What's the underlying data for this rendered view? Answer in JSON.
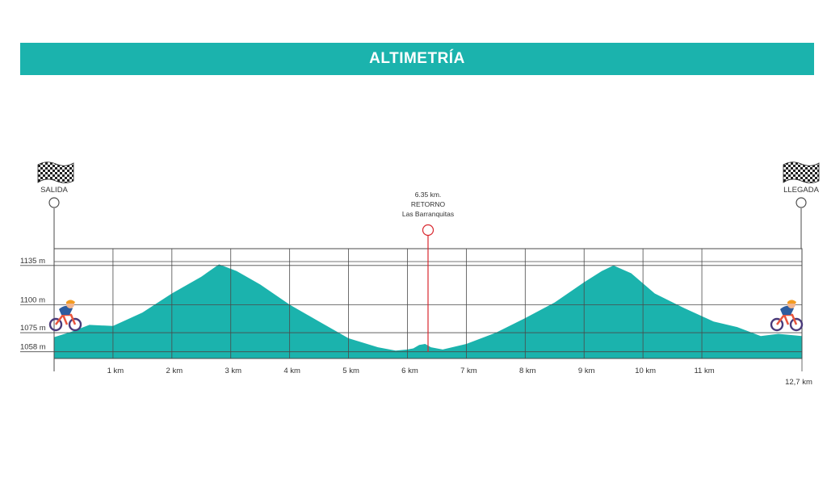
{
  "colors": {
    "accent": "#1bb3ad",
    "grid": "#4a4a4a",
    "retorno": "#d9272e"
  },
  "header": {
    "title": "ALTIMETRÍA"
  },
  "start": {
    "label": "SALIDA",
    "icon": "checkered-flag-icon",
    "rider_icon": "cyclist-icon"
  },
  "finish": {
    "label": "LLEGADA",
    "icon": "checkered-flag-icon",
    "rider_icon": "cyclist-icon"
  },
  "turnaround": {
    "distance": "6.35 km.",
    "title": "RETORNO",
    "place": "Las Barranquitas",
    "km": 6.35
  },
  "chart_data": {
    "type": "area",
    "xlabel": "",
    "ylabel": "",
    "xlim": [
      0,
      12.7
    ],
    "ylim": [
      1052,
      1150
    ],
    "y_ticks": [
      {
        "value": 1135,
        "label": "1135 m"
      },
      {
        "value": 1100,
        "label": "1100 m"
      },
      {
        "value": 1075,
        "label": "1075 m"
      },
      {
        "value": 1058,
        "label": "1058 m"
      }
    ],
    "x_ticks": [
      {
        "value": 1,
        "label": "1 km"
      },
      {
        "value": 2,
        "label": "2 km"
      },
      {
        "value": 3,
        "label": "3 km"
      },
      {
        "value": 4,
        "label": "4 km"
      },
      {
        "value": 5,
        "label": "5 km"
      },
      {
        "value": 6,
        "label": "6 km"
      },
      {
        "value": 7,
        "label": "7 km"
      },
      {
        "value": 8,
        "label": "8 km"
      },
      {
        "value": 9,
        "label": "9 km"
      },
      {
        "value": 10,
        "label": "10 km"
      },
      {
        "value": 11,
        "label": "11 km"
      },
      {
        "value": 12.7,
        "label": "12,7 km"
      }
    ],
    "grid": true,
    "series": [
      {
        "x": [
          0,
          0.3,
          0.6,
          1.0,
          1.5,
          2.0,
          2.5,
          2.8,
          3.1,
          3.5,
          4.0,
          4.5,
          5.0,
          5.5,
          5.8,
          6.0,
          6.1,
          6.2,
          6.3,
          6.4,
          6.6,
          7.0,
          7.5,
          8.0,
          8.5,
          9.0,
          9.3,
          9.5,
          9.8,
          10.2,
          10.7,
          11.2,
          11.6,
          12.0,
          12.3,
          12.7
        ],
        "y": [
          1071,
          1076,
          1082,
          1081,
          1093,
          1110,
          1125,
          1136,
          1130,
          1118,
          1100,
          1085,
          1070,
          1062,
          1059,
          1060,
          1061,
          1064,
          1065,
          1062,
          1060,
          1065,
          1075,
          1088,
          1102,
          1120,
          1130,
          1135,
          1128,
          1110,
          1097,
          1085,
          1080,
          1072,
          1074,
          1072
        ]
      }
    ]
  }
}
